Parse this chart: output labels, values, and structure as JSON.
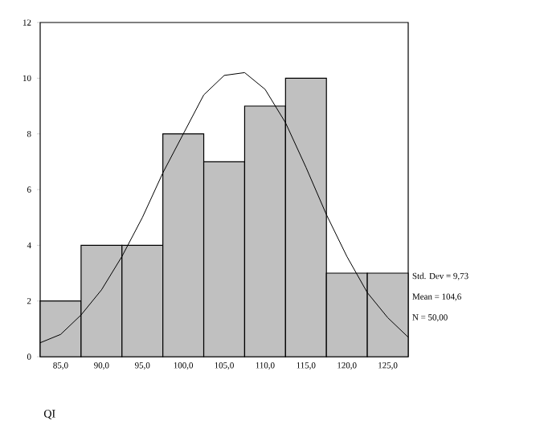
{
  "chart_data": {
    "type": "histogram",
    "xlabel": "QI",
    "bins": [
      82.5,
      87.5,
      92.5,
      97.5,
      102.5,
      107.5,
      112.5,
      117.5,
      122.5,
      127.5
    ],
    "values": [
      2,
      4,
      4,
      8,
      7,
      9,
      10,
      3,
      3
    ],
    "color": "#c0c0c0",
    "series": [
      {
        "type": "line",
        "color": "#000000",
        "x": [
          82.5,
          85,
          87.5,
          90,
          92.5,
          95,
          97.5,
          100,
          102.5,
          105,
          107.5,
          110,
          112.5,
          115,
          117.5,
          120,
          122.5,
          125,
          127.5
        ],
        "values": [
          0.5,
          0.8,
          1.5,
          2.4,
          3.6,
          5.0,
          6.6,
          8.0,
          9.4,
          10.1,
          10.2,
          9.6,
          8.4,
          6.8,
          5.1,
          3.6,
          2.3,
          1.4,
          0.7
        ]
      }
    ],
    "xlim": [
      82.5,
      127.5
    ],
    "ylim": [
      0,
      12
    ],
    "xticks": [
      {
        "value": 85,
        "label": "85,0"
      },
      {
        "value": 90,
        "label": "90,0"
      },
      {
        "value": 95,
        "label": "95,0"
      },
      {
        "value": 100,
        "label": "100,0"
      },
      {
        "value": 105,
        "label": "105,0"
      },
      {
        "value": 110,
        "label": "110,0"
      },
      {
        "value": 115,
        "label": "115,0"
      },
      {
        "value": 120,
        "label": "120,0"
      },
      {
        "value": 125,
        "label": "125,0"
      }
    ],
    "yticks": [
      0,
      2,
      4,
      6,
      8,
      10,
      12
    ],
    "annotations": [
      "Std. Dev = 9,73",
      "Mean = 104,6",
      "N = 50,00"
    ]
  }
}
